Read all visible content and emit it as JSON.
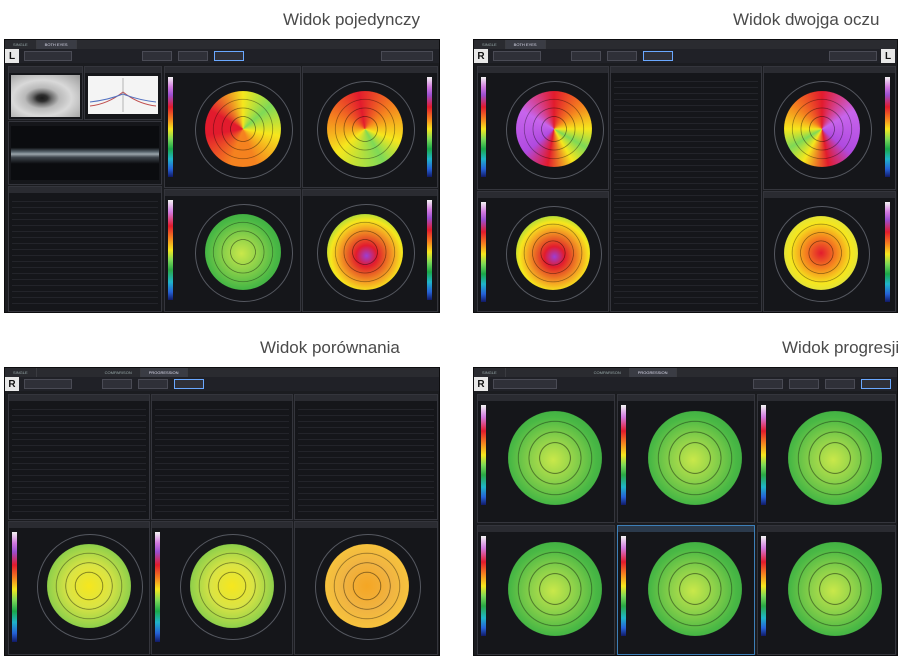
{
  "captions": {
    "single": "Widok pojedynczy",
    "both": "Widok dwojga oczu",
    "compare": "Widok porównania",
    "progress": "Widok progresji"
  },
  "eyes": {
    "left": "L",
    "right": "R"
  },
  "tabs": {
    "single": "SINGLE",
    "both": "BOTH EYES",
    "comparison": "COMPARISON",
    "progression": "PROGRESSION"
  },
  "colors": {
    "panel_bg": "#1b1c20",
    "accent": "#6aa8ff",
    "map_red": "#e21b2d",
    "map_yellow": "#f6e71d",
    "map_green": "#7ed957",
    "map_purple": "#9b4fd0"
  }
}
